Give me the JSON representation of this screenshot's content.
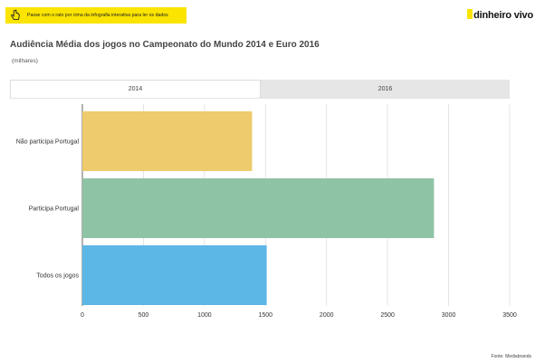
{
  "hint": {
    "text": "Passe com o rato por cima da infografia interativa para ler os dados",
    "icon": "hand-pointer-icon"
  },
  "logo": {
    "text": "dinheiro vivo"
  },
  "header": {
    "title": "Audiência Média dos jogos no Campeonato do Mundo 2014 e Euro 2016",
    "subtitle": "(milhares)"
  },
  "tabs": [
    {
      "label": "2014",
      "active": true
    },
    {
      "label": "2016",
      "active": false
    }
  ],
  "colors": {
    "accent": "#fbe400",
    "bar1": "#eecb6c",
    "bar2": "#8fc3a6",
    "bar3": "#5db7e6"
  },
  "chart_data": {
    "type": "bar",
    "orientation": "horizontal",
    "title": "Audiência Média dos jogos no Campeonato do Mundo 2014 e Euro 2016",
    "subtitle": "(milhares)",
    "categories": [
      "Não participa Portugal",
      "Participa Portugal",
      "Todos os jogos"
    ],
    "values": [
      1390,
      2880,
      1510
    ],
    "colors": [
      "#eecb6c",
      "#8fc3a6",
      "#5db7e6"
    ],
    "xlim": [
      0,
      3500
    ],
    "ticks": [
      "0",
      "500",
      "1000",
      "1500",
      "2000",
      "2500",
      "3000",
      "3500"
    ],
    "grid": true
  },
  "source": "Fonte: Mediabrands"
}
